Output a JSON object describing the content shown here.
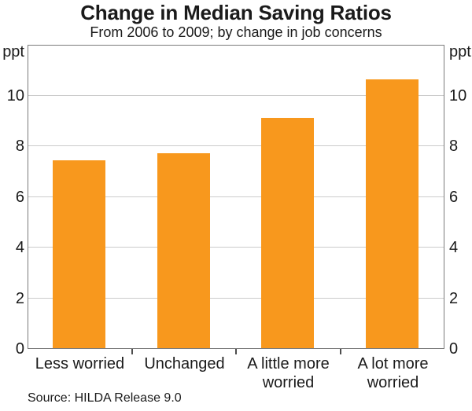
{
  "chart_data": {
    "type": "bar",
    "title": "Change in Median Saving Ratios",
    "subtitle": "From 2006 to 2009; by change in job concerns",
    "unit_left": "ppt",
    "unit_right": "ppt",
    "categories": [
      "Less worried",
      "Unchanged",
      "A little more worried",
      "A lot more worried"
    ],
    "values": [
      7.4,
      7.7,
      9.1,
      10.6
    ],
    "ylim": [
      0,
      12
    ],
    "yticks": [
      0,
      2,
      4,
      6,
      8,
      10
    ],
    "grid": "horizontal gridlines at labeled ticks, full plot width",
    "legend": "none",
    "bar_color": "#F8981D",
    "grid_color": "#CBCBCB",
    "frame_color": "#7B7B7B",
    "tick_color": "#4D4D4D",
    "text_color": "#1A1A1A",
    "source": "Source: HILDA Release 9.0"
  }
}
